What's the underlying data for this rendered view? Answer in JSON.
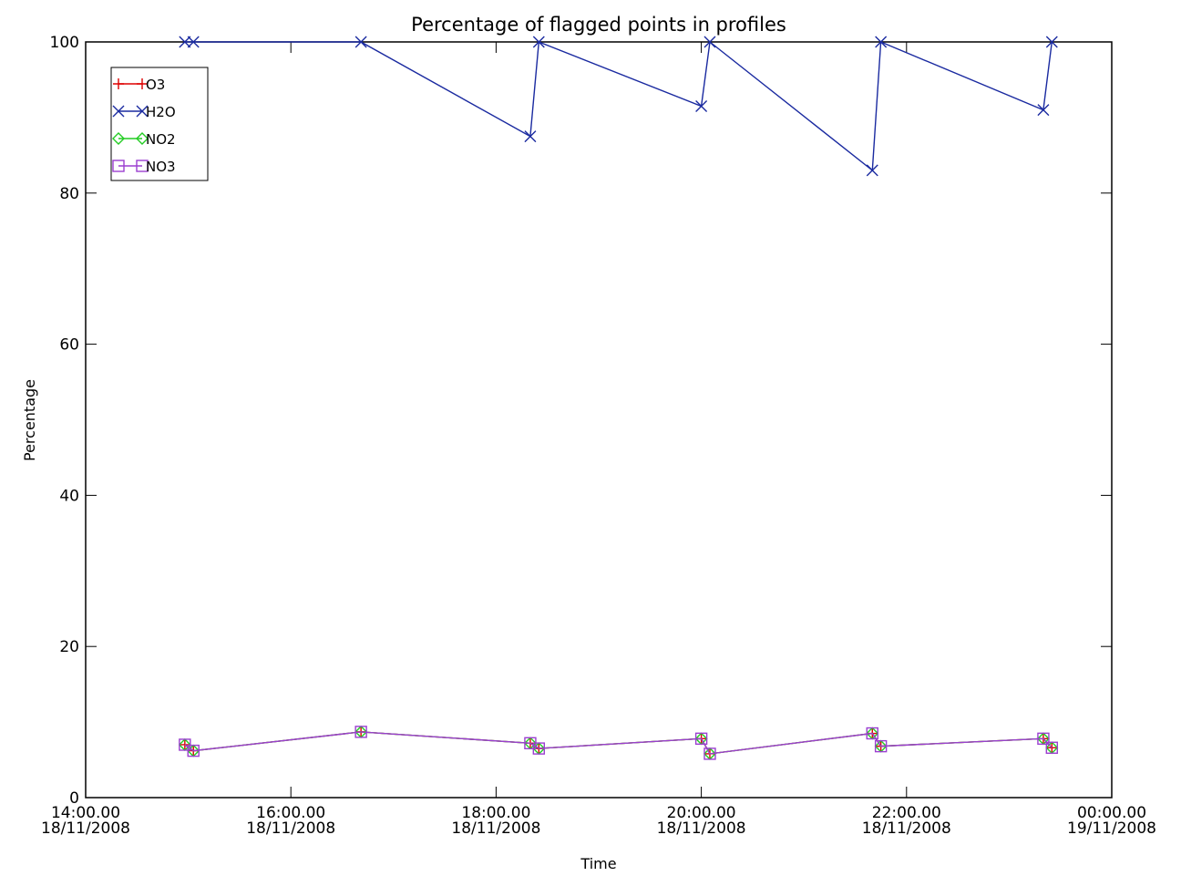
{
  "chart_data": {
    "type": "line",
    "title": "Percentage of flagged points in profiles",
    "xlabel": "Time",
    "ylabel": "Percentage",
    "xlim": [
      "2008-11-18 14:00",
      "2008-11-19 00:00"
    ],
    "ylim": [
      0,
      100
    ],
    "grid": false,
    "legend_position": "top-left",
    "x_tick_labels": [
      [
        "14:00.00",
        "18/11/2008"
      ],
      [
        "16:00.00",
        "18/11/2008"
      ],
      [
        "18:00.00",
        "18/11/2008"
      ],
      [
        "20:00.00",
        "18/11/2008"
      ],
      [
        "22:00.00",
        "18/11/2008"
      ],
      [
        "00:00.00",
        "19/11/2008"
      ]
    ],
    "y_tick_labels": [
      "0",
      "20",
      "40",
      "60",
      "80",
      "100"
    ],
    "series": [
      {
        "name": "O3",
        "color": "#dd0000",
        "marker": "plus",
        "x": [
          "2008-11-18 14:58",
          "2008-11-18 15:03",
          "2008-11-18 16:41",
          "2008-11-18 18:20",
          "2008-11-18 18:25",
          "2008-11-18 20:00",
          "2008-11-18 20:05",
          "2008-11-18 21:40",
          "2008-11-18 21:45",
          "2008-11-18 23:20",
          "2008-11-18 23:25"
        ],
        "y": [
          7.0,
          6.2,
          8.7,
          7.2,
          6.5,
          7.8,
          5.8,
          8.5,
          6.8,
          7.8,
          6.6
        ]
      },
      {
        "name": "H2O",
        "color": "#1a2aa0",
        "marker": "x",
        "x": [
          "2008-11-18 14:58",
          "2008-11-18 15:03",
          "2008-11-18 16:41",
          "2008-11-18 18:20",
          "2008-11-18 18:25",
          "2008-11-18 20:00",
          "2008-11-18 20:05",
          "2008-11-18 21:40",
          "2008-11-18 21:45",
          "2008-11-18 23:20",
          "2008-11-18 23:25"
        ],
        "y": [
          100,
          100,
          100,
          87.5,
          100,
          91.5,
          100,
          83,
          100,
          91,
          100
        ]
      },
      {
        "name": "NO2",
        "color": "#22cc22",
        "marker": "diamond",
        "x": [
          "2008-11-18 14:58",
          "2008-11-18 15:03",
          "2008-11-18 16:41",
          "2008-11-18 18:20",
          "2008-11-18 18:25",
          "2008-11-18 20:00",
          "2008-11-18 20:05",
          "2008-11-18 21:40",
          "2008-11-18 21:45",
          "2008-11-18 23:20",
          "2008-11-18 23:25"
        ],
        "y": [
          7.0,
          6.2,
          8.7,
          7.2,
          6.5,
          7.8,
          5.8,
          8.5,
          6.8,
          7.8,
          6.6
        ]
      },
      {
        "name": "NO3",
        "color": "#9b3fd0",
        "marker": "square",
        "x": [
          "2008-11-18 14:58",
          "2008-11-18 15:03",
          "2008-11-18 16:41",
          "2008-11-18 18:20",
          "2008-11-18 18:25",
          "2008-11-18 20:00",
          "2008-11-18 20:05",
          "2008-11-18 21:40",
          "2008-11-18 21:45",
          "2008-11-18 23:20",
          "2008-11-18 23:25"
        ],
        "y": [
          7.0,
          6.2,
          8.7,
          7.2,
          6.5,
          7.8,
          5.8,
          8.5,
          6.8,
          7.8,
          6.6
        ]
      }
    ]
  }
}
